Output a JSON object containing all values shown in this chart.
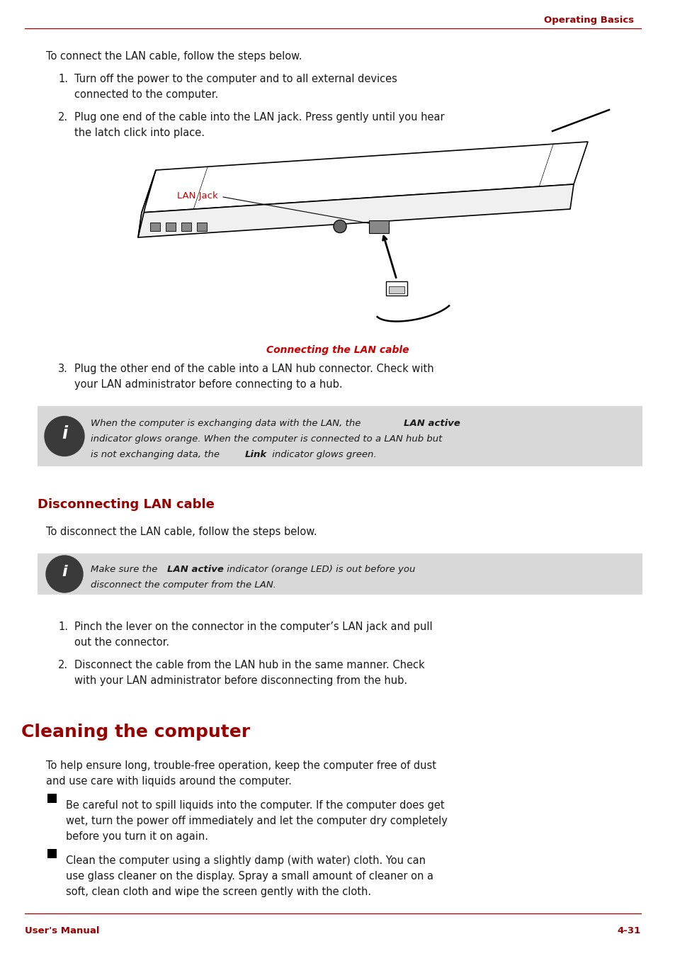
{
  "page_width": 9.54,
  "page_height": 13.49,
  "dpi": 100,
  "bg_color": "#ffffff",
  "header_text": "Operating Basics",
  "header_color": "#990000",
  "footer_left": "User's Manual",
  "footer_right": "4-31",
  "footer_color": "#990000",
  "line_color": "#990000",
  "section_title_color": "#990000",
  "body_text_color": "#1a1a1a",
  "note_bg_color": "#d8d8d8",
  "icon_color": "#3a3a3a",
  "caption_color": "#cc0000",
  "lan_jack_label_color": "#cc0000",
  "main_section_title": "Cleaning the computer",
  "sub_section_title": "Disconnecting LAN cable",
  "body_fs": 10.5,
  "small_fs": 9.5,
  "section_fs": 13,
  "main_section_fs": 18
}
